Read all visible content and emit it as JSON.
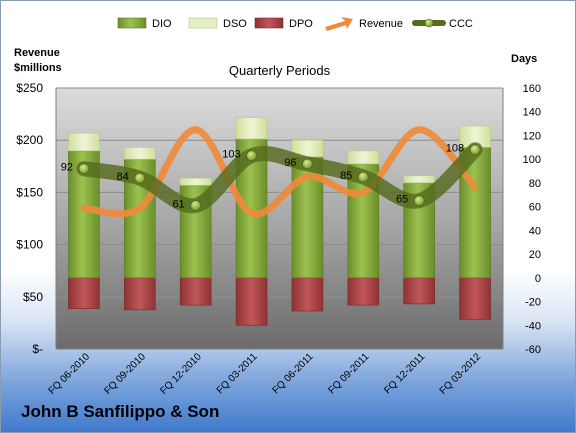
{
  "company": "John B Sanfilippo & Son",
  "chart_data": {
    "type": "bar",
    "title": "Quarterly Periods",
    "left_axis_label": [
      "Revenue",
      "$millions"
    ],
    "right_axis_label": "Days",
    "categories": [
      "FQ 06-2010",
      "FQ 09-2010",
      "FQ 12-2010",
      "FQ 03-2011",
      "FQ 06-2011",
      "FQ 09-2011",
      "FQ 12-2011",
      "FQ 03-2012"
    ],
    "left_axis": {
      "ylim": [
        0,
        250
      ],
      "ticks": [
        0,
        50,
        100,
        150,
        200,
        250
      ],
      "tick_labels": [
        "$-",
        "$50",
        "$100",
        "$150",
        "$200",
        "$250"
      ]
    },
    "right_axis": {
      "ylim": [
        -60,
        160
      ],
      "ticks": [
        -60,
        -40,
        -20,
        0,
        20,
        40,
        60,
        80,
        100,
        120,
        140,
        160
      ],
      "tick_labels": [
        "-60",
        "-40",
        "-20",
        "0",
        "20",
        "40",
        "60",
        "80",
        "100",
        "120",
        "140",
        "160"
      ]
    },
    "series": [
      {
        "name": "DIO",
        "type": "stacked-bar",
        "axis": "right",
        "color": "#7fa33b",
        "values": [
          107,
          100,
          78,
          117,
          102,
          96,
          80,
          110
        ]
      },
      {
        "name": "DSO",
        "type": "stacked-bar",
        "axis": "right",
        "color": "#e4efc4",
        "values": [
          15,
          10,
          6,
          18,
          14,
          11,
          6,
          18
        ]
      },
      {
        "name": "DPO",
        "type": "stacked-bar",
        "axis": "right",
        "color": "#b5484a",
        "values": [
          -26,
          -27,
          -23,
          -40,
          -28,
          -23,
          -22,
          -35
        ]
      },
      {
        "name": "Revenue",
        "type": "line",
        "axis": "left",
        "color": "#ef8a3a",
        "values": [
          135,
          135,
          210,
          130,
          165,
          150,
          210,
          155
        ]
      },
      {
        "name": "CCC",
        "type": "line",
        "axis": "right",
        "color": "#556b1e",
        "values": [
          92,
          84,
          61,
          103,
          96,
          85,
          65,
          108
        ],
        "data_labels": [
          "92",
          "84",
          "61",
          "103",
          "96",
          "85",
          "65",
          "108"
        ]
      }
    ],
    "legend_position": "top",
    "grid": true
  }
}
